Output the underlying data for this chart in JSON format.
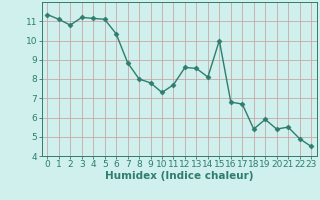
{
  "x": [
    0,
    1,
    2,
    3,
    4,
    5,
    6,
    7,
    8,
    9,
    10,
    11,
    12,
    13,
    14,
    15,
    16,
    17,
    18,
    19,
    20,
    21,
    22,
    23
  ],
  "y": [
    11.35,
    11.1,
    10.8,
    11.2,
    11.15,
    11.1,
    10.35,
    8.85,
    8.0,
    7.8,
    7.3,
    7.7,
    8.6,
    8.55,
    8.1,
    10.0,
    6.8,
    6.7,
    5.4,
    5.9,
    5.4,
    5.5,
    4.9,
    4.5
  ],
  "line_color": "#2e7d6e",
  "marker": "D",
  "marker_size": 2.5,
  "bg_color": "#cff0ec",
  "grid_color": "#c8a8a8",
  "xlabel": "Humidex (Indice chaleur)",
  "ylim": [
    4,
    12
  ],
  "xlim": [
    -0.5,
    23.5
  ],
  "yticks": [
    4,
    5,
    6,
    7,
    8,
    9,
    10,
    11
  ],
  "xticks": [
    0,
    1,
    2,
    3,
    4,
    5,
    6,
    7,
    8,
    9,
    10,
    11,
    12,
    13,
    14,
    15,
    16,
    17,
    18,
    19,
    20,
    21,
    22,
    23
  ],
  "tick_label_size": 6.5,
  "xlabel_size": 7.5,
  "line_width": 1.0
}
